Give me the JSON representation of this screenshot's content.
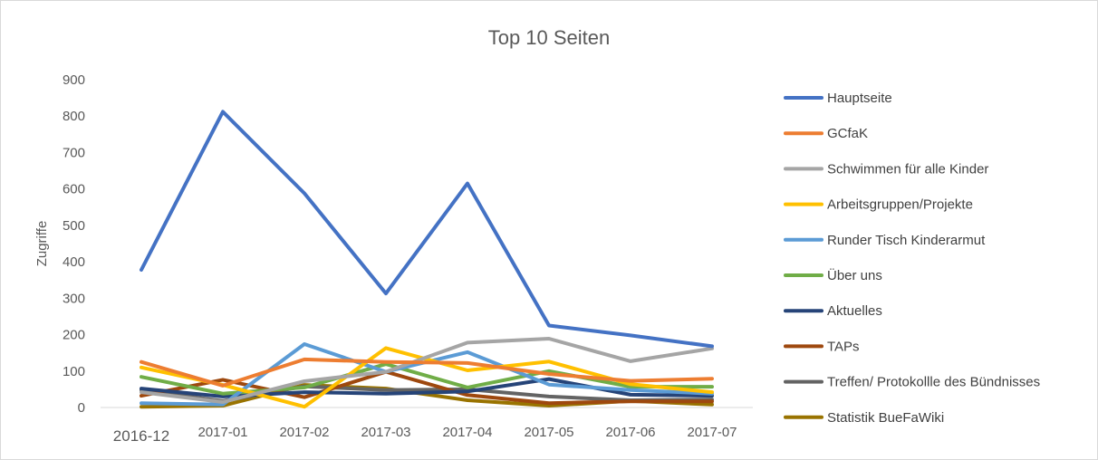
{
  "chart_data": {
    "type": "line",
    "title": "Top 10 Seiten",
    "xlabel": "",
    "ylabel": "Zugriffe",
    "ylim": [
      0,
      900
    ],
    "yticks": [
      0,
      100,
      200,
      300,
      400,
      500,
      600,
      700,
      800,
      900
    ],
    "categories": [
      "2016-12",
      "2017-01",
      "2017-02",
      "2017-03",
      "2017-04",
      "2017-05",
      "2017-06",
      "2017-07"
    ],
    "grid": false,
    "legend_position": "right",
    "series": [
      {
        "name": "Hauptseite",
        "color": "#4472C4",
        "values": [
          378,
          812,
          588,
          313,
          615,
          225,
          198,
          168
        ]
      },
      {
        "name": "GCfaK",
        "color": "#ED7D31",
        "values": [
          125,
          60,
          132,
          125,
          122,
          92,
          73,
          79
        ]
      },
      {
        "name": "Schwimmen für alle Kinder",
        "color": "#A5A5A5",
        "values": [
          42,
          15,
          72,
          98,
          178,
          189,
          127,
          162
        ]
      },
      {
        "name": "Arbeitsgruppen/Projekte",
        "color": "#FFC000",
        "values": [
          110,
          62,
          2,
          163,
          102,
          126,
          64,
          42
        ]
      },
      {
        "name": "Runder Tisch Kinderarmut",
        "color": "#5B9BD5",
        "values": [
          12,
          8,
          174,
          98,
          152,
          63,
          48,
          38
        ]
      },
      {
        "name": "Über uns",
        "color": "#70AD47",
        "values": [
          84,
          38,
          55,
          119,
          55,
          100,
          57,
          57
        ]
      },
      {
        "name": "Aktuelles",
        "color": "#264478",
        "values": [
          52,
          30,
          42,
          38,
          44,
          78,
          35,
          32
        ]
      },
      {
        "name": "TAPs",
        "color": "#9E480E",
        "values": [
          32,
          76,
          28,
          98,
          34,
          12,
          17,
          17
        ]
      },
      {
        "name": "Treffen/ Protokollle des Bündnisses",
        "color": "#636363",
        "values": [
          48,
          18,
          58,
          48,
          50,
          30,
          20,
          22
        ]
      },
      {
        "name": "Statistik BueFaWiki",
        "color": "#997300",
        "values": [
          2,
          5,
          62,
          52,
          20,
          5,
          18,
          8
        ]
      }
    ]
  }
}
